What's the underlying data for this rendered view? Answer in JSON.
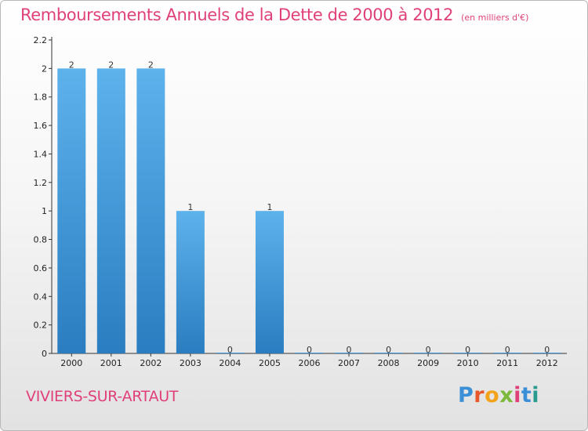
{
  "header": {
    "title": "Remboursements Annuels de la Dette de 2000 à 2012",
    "subtitle": "(en milliers d'€)"
  },
  "footer": {
    "commune": "VIVIERS-SUR-ARTAUT",
    "logo_text": "Proxiti"
  },
  "colors": {
    "title": "#e0407a",
    "bar_top": "#5eb2ec",
    "bar_bottom": "#2a7dc0"
  },
  "chart_data": {
    "type": "bar",
    "title": "Remboursements Annuels de la Dette de 2000 à 2012",
    "subtitle": "(en milliers d'€)",
    "categories": [
      "2000",
      "2001",
      "2002",
      "2003",
      "2004",
      "2005",
      "2006",
      "2007",
      "2008",
      "2009",
      "2010",
      "2011",
      "2012"
    ],
    "values": [
      2,
      2,
      2,
      1,
      0,
      1,
      0,
      0,
      0,
      0,
      0,
      0,
      0
    ],
    "data_labels": [
      "2",
      "2",
      "2",
      "1",
      "0",
      "1",
      "0",
      "0",
      "0",
      "0",
      "0",
      "0",
      "0"
    ],
    "ylim": [
      0,
      2.2
    ],
    "yticks": [
      "0",
      "0.2",
      "0.4",
      "0.6",
      "0.8",
      "1",
      "1.2",
      "1.4",
      "1.6",
      "1.8",
      "2",
      "2.2"
    ],
    "grid": false,
    "legend": "none"
  }
}
